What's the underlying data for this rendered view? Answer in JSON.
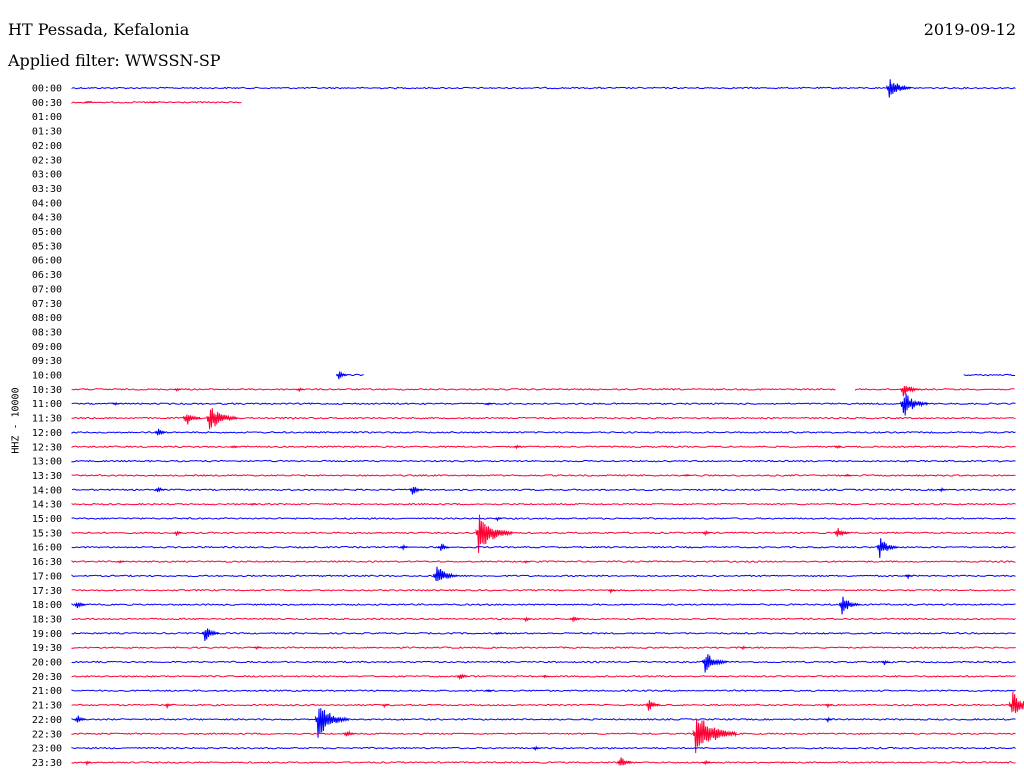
{
  "header": {
    "station": "HT Pessada, Kefalonia",
    "filter": "Applied filter: WWSSN-SP",
    "date": "2019-09-12",
    "channel": "HHZ - 10000"
  },
  "colors": {
    "odd_row": "#0000ff",
    "even_row": "#ff0033"
  },
  "chart_data": {
    "type": "line",
    "title": "HT Pessada, Kefalonia",
    "subtitle": "Applied filter: WWSSN-SP",
    "ylabel": "HHZ - 10000",
    "rows": [
      {
        "label": "00:00",
        "color": "#0000ff",
        "segments": [
          [
            0,
            1.0
          ]
        ],
        "events": [
          [
            0.865,
            14
          ]
        ]
      },
      {
        "label": "00:30",
        "color": "#ff0033",
        "segments": [
          [
            0,
            0.18
          ]
        ],
        "events": [
          [
            0.015,
            2
          ],
          [
            0.085,
            2
          ]
        ]
      },
      {
        "label": "01:00",
        "color": "#0000ff",
        "segments": [],
        "events": []
      },
      {
        "label": "01:30",
        "color": "#ff0033",
        "segments": [],
        "events": []
      },
      {
        "label": "02:00",
        "color": "#0000ff",
        "segments": [],
        "events": []
      },
      {
        "label": "02:30",
        "color": "#ff0033",
        "segments": [],
        "events": []
      },
      {
        "label": "03:00",
        "color": "#0000ff",
        "segments": [],
        "events": []
      },
      {
        "label": "03:30",
        "color": "#ff0033",
        "segments": [],
        "events": []
      },
      {
        "label": "04:00",
        "color": "#0000ff",
        "segments": [],
        "events": []
      },
      {
        "label": "04:30",
        "color": "#ff0033",
        "segments": [],
        "events": []
      },
      {
        "label": "05:00",
        "color": "#0000ff",
        "segments": [],
        "events": []
      },
      {
        "label": "05:30",
        "color": "#ff0033",
        "segments": [],
        "events": []
      },
      {
        "label": "06:00",
        "color": "#0000ff",
        "segments": [],
        "events": []
      },
      {
        "label": "06:30",
        "color": "#ff0033",
        "segments": [],
        "events": []
      },
      {
        "label": "07:00",
        "color": "#0000ff",
        "segments": [],
        "events": []
      },
      {
        "label": "07:30",
        "color": "#ff0033",
        "segments": [],
        "events": []
      },
      {
        "label": "08:00",
        "color": "#0000ff",
        "segments": [],
        "events": []
      },
      {
        "label": "08:30",
        "color": "#ff0033",
        "segments": [],
        "events": []
      },
      {
        "label": "09:00",
        "color": "#0000ff",
        "segments": [],
        "events": []
      },
      {
        "label": "09:30",
        "color": "#ff0033",
        "segments": [],
        "events": []
      },
      {
        "label": "10:00",
        "color": "#0000ff",
        "segments": [
          [
            0.282,
            0.31
          ],
          [
            0.945,
            1.0
          ]
        ],
        "events": [
          [
            0.282,
            6
          ]
        ]
      },
      {
        "label": "10:30",
        "color": "#ff0033",
        "segments": [
          [
            0,
            0.81
          ],
          [
            0.83,
            1.0
          ]
        ],
        "events": [
          [
            0.11,
            3
          ],
          [
            0.24,
            3
          ],
          [
            0.88,
            10
          ]
        ]
      },
      {
        "label": "11:00",
        "color": "#0000ff",
        "segments": [
          [
            0,
            1.0
          ]
        ],
        "events": [
          [
            0.88,
            16
          ],
          [
            0.045,
            2
          ],
          [
            0.44,
            2
          ]
        ]
      },
      {
        "label": "11:30",
        "color": "#ff0033",
        "segments": [
          [
            0,
            1.0
          ]
        ],
        "events": [
          [
            0.12,
            10
          ],
          [
            0.145,
            18
          ]
        ]
      },
      {
        "label": "12:00",
        "color": "#0000ff",
        "segments": [
          [
            0,
            1.0
          ]
        ],
        "events": [
          [
            0.09,
            6
          ]
        ]
      },
      {
        "label": "12:30",
        "color": "#ff0033",
        "segments": [
          [
            0,
            1.0
          ]
        ],
        "events": [
          [
            0.17,
            3
          ],
          [
            0.47,
            3
          ],
          [
            0.81,
            3
          ]
        ]
      },
      {
        "label": "13:00",
        "color": "#0000ff",
        "segments": [
          [
            0,
            1.0
          ]
        ],
        "events": []
      },
      {
        "label": "13:30",
        "color": "#ff0033",
        "segments": [
          [
            0,
            1.0
          ]
        ],
        "events": [
          [
            0.65,
            2
          ],
          [
            0.82,
            2
          ]
        ]
      },
      {
        "label": "14:00",
        "color": "#0000ff",
        "segments": [
          [
            0,
            1.0
          ]
        ],
        "events": [
          [
            0.09,
            5
          ],
          [
            0.36,
            7
          ],
          [
            0.92,
            3
          ]
        ]
      },
      {
        "label": "14:30",
        "color": "#ff0033",
        "segments": [
          [
            0,
            1.0
          ]
        ],
        "events": [
          [
            0.19,
            2
          ]
        ]
      },
      {
        "label": "15:00",
        "color": "#0000ff",
        "segments": [
          [
            0,
            1.0
          ]
        ],
        "events": [
          [
            0.45,
            3
          ]
        ]
      },
      {
        "label": "15:30",
        "color": "#ff0033",
        "segments": [
          [
            0,
            1.0
          ]
        ],
        "events": [
          [
            0.11,
            4
          ],
          [
            0.43,
            22
          ],
          [
            0.67,
            4
          ],
          [
            0.81,
            8
          ]
        ]
      },
      {
        "label": "16:00",
        "color": "#0000ff",
        "segments": [
          [
            0,
            1.0
          ]
        ],
        "events": [
          [
            0.35,
            4
          ],
          [
            0.39,
            6
          ],
          [
            0.855,
            12
          ]
        ]
      },
      {
        "label": "16:30",
        "color": "#ff0033",
        "segments": [
          [
            0,
            1.0
          ]
        ],
        "events": [
          [
            0.05,
            2
          ],
          [
            0.48,
            2
          ]
        ]
      },
      {
        "label": "17:00",
        "color": "#0000ff",
        "segments": [
          [
            0,
            1.0
          ]
        ],
        "events": [
          [
            0.385,
            14
          ],
          [
            0.885,
            3
          ]
        ]
      },
      {
        "label": "17:30",
        "color": "#ff0033",
        "segments": [
          [
            0,
            1.0
          ]
        ],
        "events": [
          [
            0.57,
            3
          ]
        ]
      },
      {
        "label": "18:00",
        "color": "#0000ff",
        "segments": [
          [
            0,
            1.0
          ]
        ],
        "events": [
          [
            0.005,
            6
          ],
          [
            0.815,
            12
          ]
        ]
      },
      {
        "label": "18:30",
        "color": "#ff0033",
        "segments": [
          [
            0,
            1.0
          ]
        ],
        "events": [
          [
            0.48,
            4
          ],
          [
            0.53,
            5
          ]
        ]
      },
      {
        "label": "19:00",
        "color": "#0000ff",
        "segments": [
          [
            0,
            1.0
          ]
        ],
        "events": [
          [
            0.14,
            10
          ],
          [
            0.45,
            2
          ]
        ]
      },
      {
        "label": "19:30",
        "color": "#ff0033",
        "segments": [
          [
            0,
            1.0
          ]
        ],
        "events": [
          [
            0.195,
            2
          ],
          [
            0.71,
            3
          ]
        ]
      },
      {
        "label": "20:00",
        "color": "#0000ff",
        "segments": [
          [
            0,
            1.0
          ]
        ],
        "events": [
          [
            0.67,
            14
          ],
          [
            0.86,
            4
          ]
        ]
      },
      {
        "label": "20:30",
        "color": "#ff0033",
        "segments": [
          [
            0,
            1.0
          ]
        ],
        "events": [
          [
            0.41,
            6
          ],
          [
            0.5,
            2
          ]
        ]
      },
      {
        "label": "21:00",
        "color": "#0000ff",
        "segments": [
          [
            0,
            1.0
          ]
        ],
        "events": [
          [
            0.44,
            2
          ]
        ]
      },
      {
        "label": "21:30",
        "color": "#ff0033",
        "segments": [
          [
            0,
            1.0
          ]
        ],
        "events": [
          [
            0.1,
            4
          ],
          [
            0.33,
            3
          ],
          [
            0.61,
            8
          ],
          [
            0.8,
            3
          ],
          [
            0.995,
            16
          ]
        ]
      },
      {
        "label": "22:00",
        "color": "#0000ff",
        "segments": [
          [
            0,
            1.0
          ]
        ],
        "events": [
          [
            0.005,
            6
          ],
          [
            0.26,
            20
          ],
          [
            0.8,
            3
          ]
        ]
      },
      {
        "label": "22:30",
        "color": "#ff0033",
        "segments": [
          [
            0,
            1.0
          ]
        ],
        "events": [
          [
            0.29,
            6
          ],
          [
            0.66,
            26
          ]
        ]
      },
      {
        "label": "23:00",
        "color": "#0000ff",
        "segments": [
          [
            0,
            1.0
          ]
        ],
        "events": [
          [
            0.49,
            3
          ]
        ]
      },
      {
        "label": "23:30",
        "color": "#ff0033",
        "segments": [
          [
            0,
            1.0
          ]
        ],
        "events": [
          [
            0.015,
            3
          ],
          [
            0.58,
            8
          ],
          [
            0.67,
            4
          ]
        ]
      }
    ]
  }
}
